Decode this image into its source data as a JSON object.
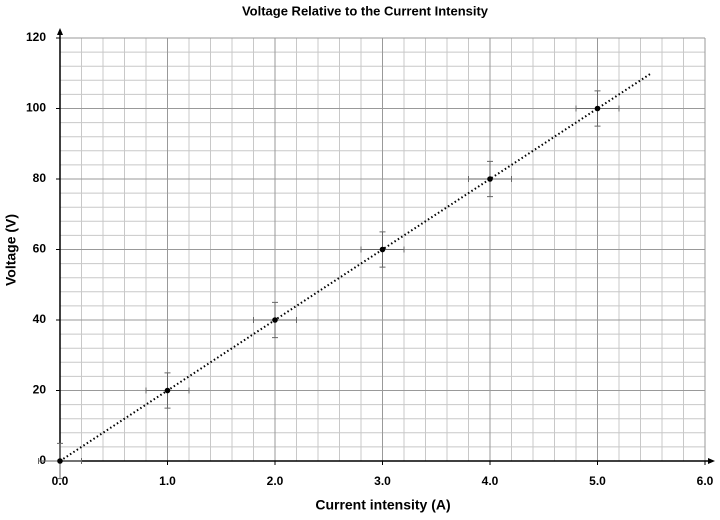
{
  "chart_data": {
    "type": "scatter",
    "title": "Voltage Relative to the Current Intensity",
    "x_label": "Current intensity (A)",
    "y_label": "Voltage (V)",
    "x": [
      0,
      1,
      2,
      3,
      4,
      5
    ],
    "values": [
      0,
      20,
      40,
      60,
      80,
      100
    ],
    "x_err": [
      0.2,
      0.2,
      0.2,
      0.2,
      0.2,
      0.2
    ],
    "y_err": [
      5,
      5,
      5,
      5,
      5,
      5
    ],
    "color": "#000000",
    "trendline": {
      "x": [
        0,
        5.5
      ],
      "values": [
        0,
        110
      ],
      "color": "#000000"
    },
    "xlim": [
      0,
      6
    ],
    "xticks": [
      {
        "value": 0,
        "label": "0.0"
      },
      {
        "value": 1,
        "label": "1.0"
      },
      {
        "value": 2,
        "label": "2.0"
      },
      {
        "value": 3,
        "label": "3.0"
      },
      {
        "value": 4,
        "label": "4.0"
      },
      {
        "value": 5,
        "label": "5.0"
      },
      {
        "value": 6,
        "label": "6.0"
      }
    ],
    "ylim": [
      0,
      120
    ],
    "yticks": [
      0,
      20,
      40,
      60,
      80,
      100,
      120
    ],
    "grid": true,
    "x_minor_step": 0.2,
    "y_minor_step": 4
  }
}
